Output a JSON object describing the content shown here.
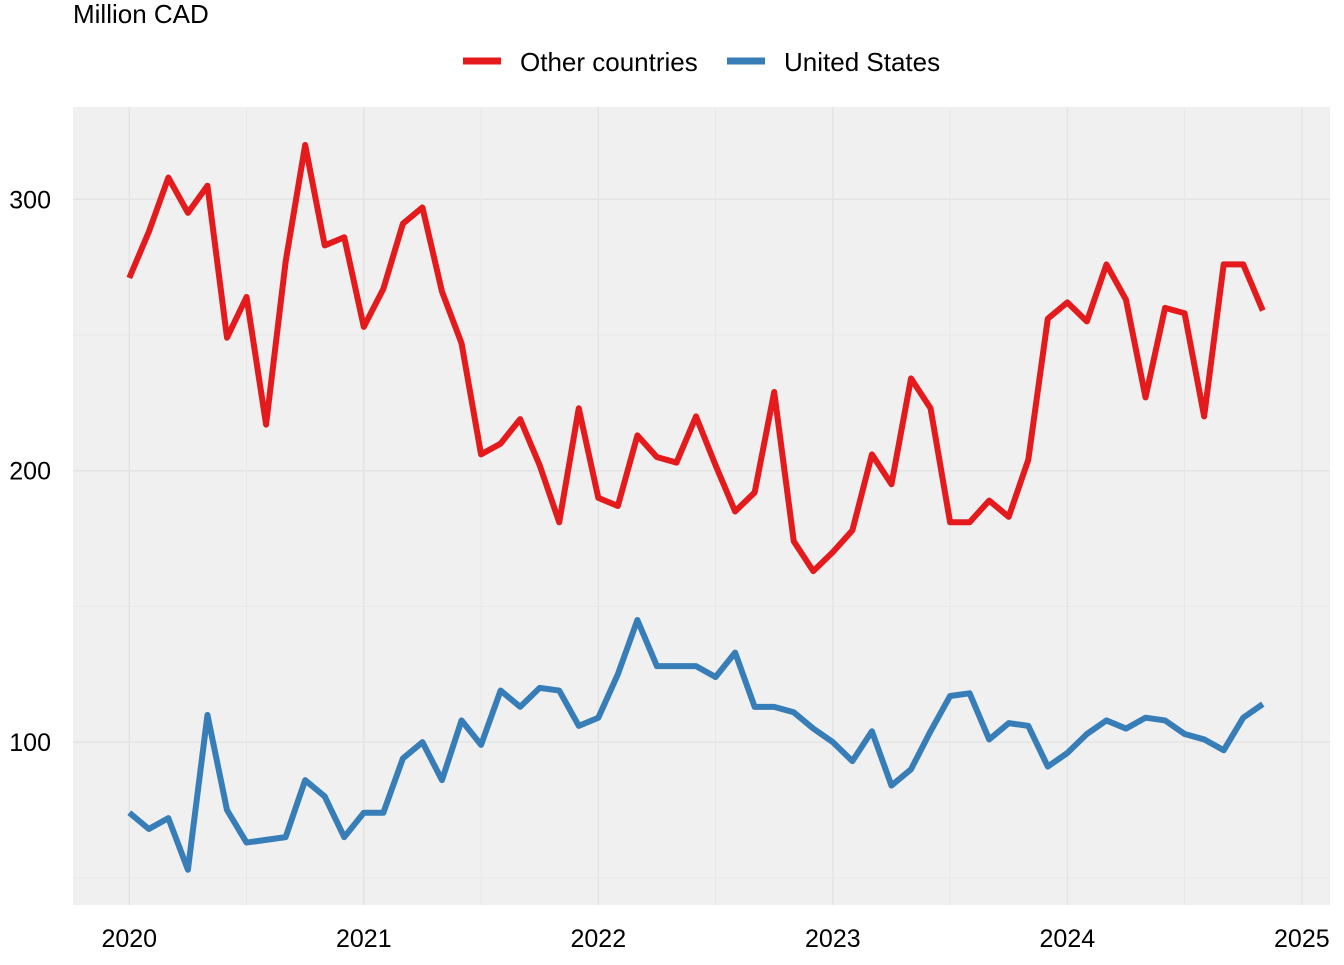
{
  "chart_data": {
    "type": "line",
    "title": "",
    "ylabel": "Million CAD",
    "xlabel": "",
    "ylim": [
      40,
      334
    ],
    "xlim": [
      2019.76,
      2025.12
    ],
    "yticks": [
      100,
      200,
      300
    ],
    "xticks": [
      2020,
      2021,
      2022,
      2023,
      2024,
      2025
    ],
    "grid": true,
    "legend_position": "top",
    "x_start": 2020,
    "x_step_months": 1,
    "series": [
      {
        "name": "Other countries",
        "color": "#e41a1c",
        "values": [
          271,
          288,
          308,
          295,
          305,
          249,
          264,
          217,
          277,
          320,
          283,
          286,
          253,
          267,
          291,
          297,
          266,
          247,
          206,
          210,
          219,
          202,
          181,
          223,
          190,
          187,
          213,
          205,
          203,
          220,
          202,
          185,
          192,
          229,
          174,
          163,
          170,
          178,
          206,
          195,
          234,
          223,
          181,
          181,
          189,
          183,
          204,
          256,
          262,
          255,
          276,
          263,
          227,
          260,
          258,
          220,
          276,
          276,
          259
        ]
      },
      {
        "name": "United States",
        "color": "#377eb8",
        "values": [
          74,
          68,
          72,
          53,
          110,
          75,
          63,
          64,
          65,
          86,
          80,
          65,
          74,
          74,
          94,
          100,
          86,
          108,
          99,
          119,
          113,
          120,
          119,
          106,
          109,
          125,
          145,
          128,
          128,
          128,
          124,
          133,
          113,
          113,
          111,
          105,
          100,
          93,
          104,
          84,
          90,
          104,
          117,
          118,
          101,
          107,
          106,
          91,
          96,
          103,
          108,
          105,
          109,
          108,
          103,
          101,
          97,
          109,
          114
        ]
      }
    ]
  }
}
